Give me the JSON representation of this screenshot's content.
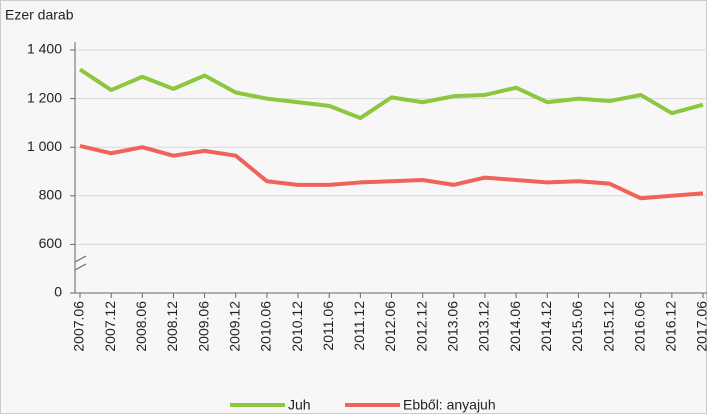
{
  "chart_data": {
    "type": "line",
    "y_axis_label": "Ezer darab",
    "categories": [
      "2007.06",
      "2007.12",
      "2008.06",
      "2008.12",
      "2009.06",
      "2009.12",
      "2010.06",
      "2010.12",
      "2011.06",
      "2011.12",
      "2012.06",
      "2012.12",
      "2013.06",
      "2013.12",
      "2014.06",
      "2014.12",
      "2015.06",
      "2015.12",
      "2016.06",
      "2016.12",
      "2017.06"
    ],
    "series": [
      {
        "name": "Juh",
        "color": "#8dc63f",
        "values": [
          1320,
          1235,
          1290,
          1240,
          1295,
          1225,
          1200,
          1185,
          1170,
          1120,
          1205,
          1185,
          1210,
          1215,
          1245,
          1185,
          1200,
          1190,
          1215,
          1140,
          1175
        ]
      },
      {
        "name": "Ebből: anyajuh",
        "color": "#f0625a",
        "values": [
          1005,
          975,
          1000,
          965,
          985,
          965,
          860,
          845,
          845,
          855,
          860,
          865,
          845,
          875,
          865,
          855,
          860,
          850,
          790,
          800,
          810
        ]
      }
    ],
    "ylim": [
      0,
      1400
    ],
    "yticks": [
      0,
      600,
      800,
      {
        "value": 1000,
        "label": "1 000"
      },
      {
        "value": 1200,
        "label": "1 200"
      },
      {
        "value": 1400,
        "label": "1 400"
      }
    ],
    "axis_break": true,
    "grid": true,
    "legend": "bottom"
  }
}
